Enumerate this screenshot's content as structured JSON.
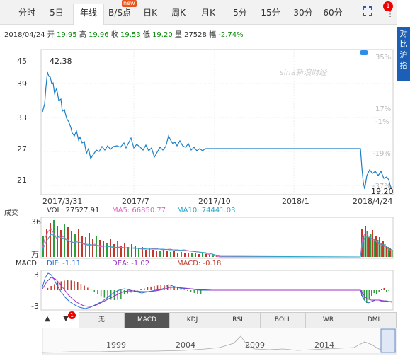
{
  "tabs": [
    {
      "label": "分时",
      "active": false
    },
    {
      "label": "5日",
      "active": false
    },
    {
      "label": "年线",
      "active": true
    },
    {
      "label": "B/S点",
      "active": false
    },
    {
      "label": "日K",
      "active": false
    },
    {
      "label": "周K",
      "active": false
    },
    {
      "label": "月K",
      "active": false
    },
    {
      "label": "5分",
      "active": false
    },
    {
      "label": "15分",
      "active": false
    },
    {
      "label": "30分",
      "active": false
    },
    {
      "label": "60分",
      "active": false
    }
  ],
  "new_badge": "new",
  "notification_count": "1",
  "info": {
    "date": "2018/04/24",
    "open_label": "开",
    "open": "19.95",
    "high_label": "高",
    "high": "19.96",
    "close_label": "收",
    "close": "19.53",
    "low_label": "低",
    "low": "19.20",
    "vol_label": "量",
    "vol": "27528",
    "chg_label": "幅",
    "chg": "-2.74%"
  },
  "compare_button": "对比沪指",
  "price_chart": {
    "y_ticks": [
      "45",
      "39",
      "33",
      "27",
      "21"
    ],
    "pct_ticks": [
      "35%",
      "17%",
      "-1%",
      "-19%",
      "-37%"
    ],
    "x_ticks": [
      "2017/3/31",
      "2017/7",
      "2017/10",
      "2018/1",
      "2018/4/24"
    ],
    "max_label": "42.38",
    "last_label": "19.20",
    "watermark": "sina新浪财经"
  },
  "volume": {
    "title": "成交",
    "vol_label": "VOL: 27527.91",
    "ma5_label": "MA5: 66850.77",
    "ma10_label": "MA10: 74441.03",
    "y_top": "36",
    "unit": "万"
  },
  "macd": {
    "title": "MACD",
    "dif_label": "DIF: -1.11",
    "dea_label": "DEA: -1.02",
    "macd_label": "MACD: -0.18",
    "y_top": "3",
    "y_bottom": "-3"
  },
  "indicators": [
    {
      "label": "无",
      "active": false
    },
    {
      "label": "MACD",
      "active": true
    },
    {
      "label": "KDJ",
      "active": false
    },
    {
      "label": "RSI",
      "active": false
    },
    {
      "label": "BOLL",
      "active": false
    },
    {
      "label": "WR",
      "active": false
    },
    {
      "label": "DMI",
      "active": false
    }
  ],
  "indicator_badge": "1",
  "overview_years": [
    "1999",
    "2004",
    "2009",
    "2014"
  ],
  "colors": {
    "price_line": "#1a7fc7",
    "ma5": "#e066c0",
    "ma10": "#2aa7c9",
    "up": "#c0392b",
    "down": "#2e9e3e",
    "dif": "#2a6fd6",
    "dea": "#9b33c9"
  }
}
